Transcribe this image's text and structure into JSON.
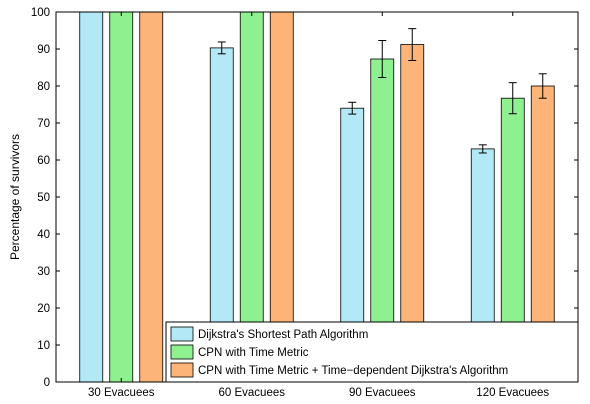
{
  "chart_data": {
    "type": "bar",
    "title": "",
    "xlabel": "",
    "ylabel": "Percentage of survivors",
    "ylim": [
      0,
      100
    ],
    "yticks": [
      0,
      10,
      20,
      30,
      40,
      50,
      60,
      70,
      80,
      90,
      100
    ],
    "categories": [
      "30 Evacuees",
      "60 Evacuees",
      "90 Evacuees",
      "120 Evacuees"
    ],
    "series": [
      {
        "name": "Dijkstra's Shortest Path Algorithm",
        "color": "#b3e8f6",
        "values": [
          100,
          90.3,
          74,
          63
        ],
        "errors": [
          0,
          1.6,
          1.6,
          1.1
        ]
      },
      {
        "name": "CPN with Time Metric",
        "color": "#8ff08f",
        "values": [
          100,
          100,
          87.3,
          76.7
        ],
        "errors": [
          0,
          0,
          5,
          4.2
        ]
      },
      {
        "name": "CPN with Time Metric + Time−dependent Dijkstra's Algorithm",
        "color": "#fcb478",
        "values": [
          100,
          100,
          91.2,
          80
        ],
        "errors": [
          0,
          0,
          4.3,
          3.3
        ]
      }
    ],
    "error_bars": true,
    "grid": false,
    "legend_position": "bottom-right"
  }
}
